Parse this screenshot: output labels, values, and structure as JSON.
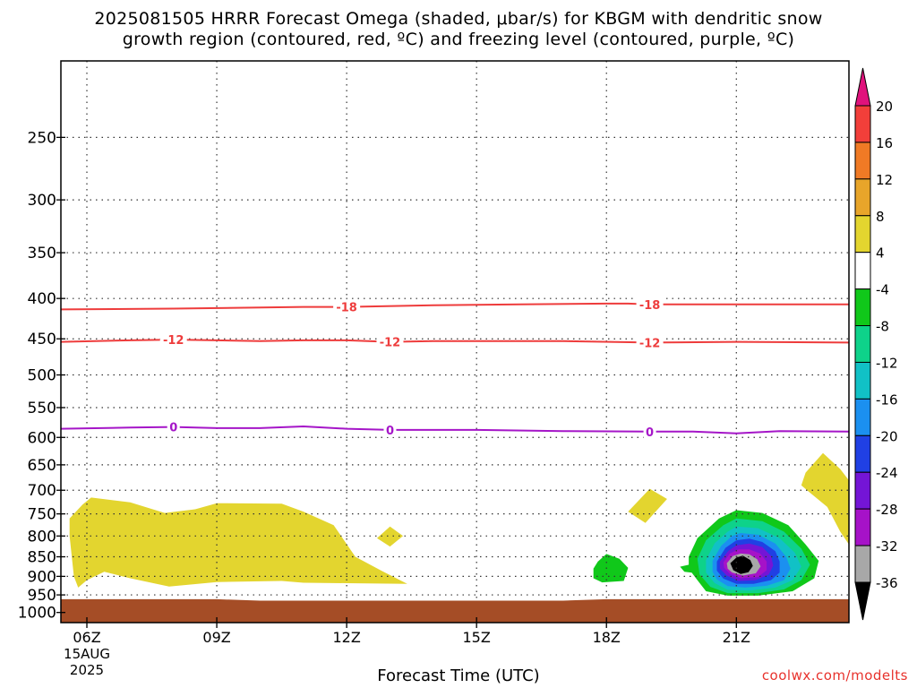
{
  "title_line1": "2025081505 HRRR Forecast Omega (shaded, μbar/s) for KBGM with dendritic snow",
  "title_line2": "growth region (contoured, red, ºC) and freezing level (contoured, purple, ºC)",
  "credit": "coolwx.com/modelts",
  "chart_data": {
    "type": "heatmap",
    "title": "2025081505 HRRR Forecast Omega (shaded, μbar/s) for KBGM with dendritic snow growth region (contoured, red, ºC) and freezing level (contoured, purple, ºC)",
    "xlabel": "Forecast Time (UTC)",
    "ylabel": "",
    "x_unit": "hour UTC, 15 Aug 2025",
    "xlim": [
      5.4,
      23.6
    ],
    "ylim_hPa": [
      1030,
      200
    ],
    "y_scale": "log-pressure",
    "grid": true,
    "x_ticks": [
      {
        "hour": 6,
        "label": "06Z",
        "sub": [
          "15AUG",
          "2025"
        ]
      },
      {
        "hour": 9,
        "label": "09Z"
      },
      {
        "hour": 12,
        "label": "12Z"
      },
      {
        "hour": 15,
        "label": "15Z"
      },
      {
        "hour": 18,
        "label": "18Z"
      },
      {
        "hour": 21,
        "label": "21Z"
      }
    ],
    "y_ticks": [
      250,
      300,
      350,
      400,
      450,
      500,
      550,
      600,
      650,
      700,
      750,
      800,
      850,
      900,
      950,
      1000
    ],
    "colorbar": {
      "labels": [
        "20",
        "16",
        "12",
        "8",
        "4",
        "-4",
        "-8",
        "-12",
        "-16",
        "-20",
        "-24",
        "-28",
        "-32",
        "-36"
      ],
      "bins": [
        {
          "from": 20,
          "to": 24,
          "color": "#e0127c"
        },
        {
          "from": 16,
          "to": 20,
          "color": "#f23f3a"
        },
        {
          "from": 12,
          "to": 16,
          "color": "#f07a25"
        },
        {
          "from": 8,
          "to": 12,
          "color": "#e8a52a"
        },
        {
          "from": 4,
          "to": 8,
          "color": "#e3d52f"
        },
        {
          "from": -4,
          "to": 4,
          "color": "#ffffff"
        },
        {
          "from": -8,
          "to": -4,
          "color": "#10c81a"
        },
        {
          "from": -12,
          "to": -8,
          "color": "#0ed28a"
        },
        {
          "from": -16,
          "to": -12,
          "color": "#11c1c6"
        },
        {
          "from": -20,
          "to": -16,
          "color": "#1b90f0"
        },
        {
          "from": -24,
          "to": -20,
          "color": "#2040e4"
        },
        {
          "from": -28,
          "to": -24,
          "color": "#7415d6"
        },
        {
          "from": -32,
          "to": -28,
          "color": "#a612c8"
        },
        {
          "from": -36,
          "to": -32,
          "color": "#a8a8a8"
        },
        {
          "from": -40,
          "to": -36,
          "color": "#000000"
        }
      ]
    },
    "ground_color": "#a54d26",
    "ground_top": [
      [
        5.4,
        962
      ],
      [
        9,
        962
      ],
      [
        10,
        966
      ],
      [
        17,
        966
      ],
      [
        18,
        962
      ],
      [
        23.6,
        962
      ]
    ],
    "contours": [
      {
        "value": -18,
        "label": "-18",
        "color": "#ee3c3c",
        "points": [
          [
            5.4,
            413
          ],
          [
            8,
            412
          ],
          [
            11,
            410
          ],
          [
            12,
            410
          ],
          [
            14,
            408
          ],
          [
            16,
            407
          ],
          [
            18,
            406
          ],
          [
            18.5,
            406
          ],
          [
            19,
            407
          ],
          [
            20,
            407
          ],
          [
            21,
            407
          ],
          [
            23.6,
            407
          ]
        ],
        "label_at": [
          12,
          19
        ]
      },
      {
        "value": -12,
        "label": "-12",
        "color": "#ee3c3c",
        "points": [
          [
            5.4,
            454
          ],
          [
            7,
            452
          ],
          [
            8,
            451
          ],
          [
            9,
            452
          ],
          [
            10,
            453
          ],
          [
            11,
            452
          ],
          [
            12,
            452
          ],
          [
            13,
            454
          ],
          [
            14,
            453
          ],
          [
            15,
            453
          ],
          [
            17,
            453
          ],
          [
            19,
            455
          ],
          [
            21,
            454
          ],
          [
            23.6,
            455
          ]
        ],
        "label_at": [
          8,
          13,
          19
        ]
      },
      {
        "value": 0,
        "label": "0",
        "color": "#a516c8",
        "points": [
          [
            5.4,
            585
          ],
          [
            7,
            583
          ],
          [
            8,
            582
          ],
          [
            9,
            584
          ],
          [
            10,
            584
          ],
          [
            11,
            581
          ],
          [
            12,
            585
          ],
          [
            13,
            587
          ],
          [
            15,
            587
          ],
          [
            17,
            589
          ],
          [
            19,
            590
          ],
          [
            20,
            590
          ],
          [
            21,
            593
          ],
          [
            22,
            589
          ],
          [
            23.6,
            590
          ]
        ],
        "label_at": [
          8,
          13,
          19
        ]
      }
    ],
    "shaded_regions": [
      {
        "value": "4 to 8",
        "color": "#e3d52f",
        "points": [
          [
            5.6,
            800
          ],
          [
            5.6,
            760
          ],
          [
            5.9,
            730
          ],
          [
            6.1,
            715
          ],
          [
            7,
            725
          ],
          [
            7.8,
            748
          ],
          [
            8.5,
            740
          ],
          [
            9,
            727
          ],
          [
            10.5,
            728
          ],
          [
            11,
            745
          ],
          [
            11.7,
            775
          ],
          [
            12.2,
            850
          ],
          [
            12.8,
            885
          ],
          [
            13.4,
            920
          ],
          [
            12,
            918
          ],
          [
            11,
            917
          ],
          [
            10.5,
            912
          ],
          [
            9,
            915
          ],
          [
            7.9,
            927
          ],
          [
            7,
            905
          ],
          [
            6.4,
            888
          ],
          [
            6,
            910
          ],
          [
            5.8,
            930
          ],
          [
            5.7,
            900
          ]
        ]
      },
      {
        "value": "4 to 8",
        "color": "#e3d52f",
        "points": [
          [
            12.7,
            805
          ],
          [
            13.0,
            778
          ],
          [
            13.3,
            800
          ],
          [
            13.0,
            825
          ]
        ]
      },
      {
        "value": "4 to 8",
        "color": "#e3d52f",
        "points": [
          [
            18.5,
            745
          ],
          [
            19.0,
            697
          ],
          [
            19.4,
            718
          ],
          [
            18.9,
            770
          ]
        ]
      },
      {
        "value": "4 to 8",
        "color": "#e3d52f",
        "points": [
          [
            22.6,
            665
          ],
          [
            23.0,
            628
          ],
          [
            23.4,
            658
          ],
          [
            23.6,
            680
          ],
          [
            23.6,
            820
          ],
          [
            23.4,
            790
          ],
          [
            23.1,
            735
          ],
          [
            22.7,
            705
          ],
          [
            22.5,
            690
          ]
        ]
      },
      {
        "value": "-8 to -4",
        "color": "#10c81a",
        "points": [
          [
            17.7,
            880
          ],
          [
            17.8,
            862
          ],
          [
            18.0,
            843
          ],
          [
            18.3,
            855
          ],
          [
            18.5,
            878
          ],
          [
            18.4,
            912
          ],
          [
            17.9,
            916
          ],
          [
            17.7,
            905
          ]
        ]
      },
      {
        "value": "-8 to -4",
        "color": "#10c81a",
        "points": [
          [
            19.7,
            875
          ],
          [
            20.1,
            865
          ],
          [
            20.3,
            875
          ],
          [
            20.1,
            892
          ],
          [
            19.8,
            888
          ]
        ]
      },
      {
        "value": "-8 to -4",
        "color": "#10c81a",
        "points": [
          [
            19.9,
            850
          ],
          [
            20.1,
            805
          ],
          [
            20.6,
            760
          ],
          [
            21.0,
            742
          ],
          [
            21.6,
            748
          ],
          [
            22.2,
            775
          ],
          [
            22.6,
            820
          ],
          [
            22.9,
            860
          ],
          [
            22.8,
            905
          ],
          [
            22.3,
            940
          ],
          [
            21.5,
            952
          ],
          [
            20.8,
            952
          ],
          [
            20.3,
            940
          ],
          [
            20.1,
            910
          ],
          [
            19.9,
            880
          ]
        ]
      },
      {
        "value": "-12 to -8",
        "color": "#0ed28a",
        "points": [
          [
            20.1,
            855
          ],
          [
            20.3,
            810
          ],
          [
            20.7,
            775
          ],
          [
            21.0,
            760
          ],
          [
            21.6,
            766
          ],
          [
            22.1,
            790
          ],
          [
            22.5,
            830
          ],
          [
            22.7,
            870
          ],
          [
            22.5,
            910
          ],
          [
            22.1,
            935
          ],
          [
            21.5,
            945
          ],
          [
            20.8,
            945
          ],
          [
            20.4,
            928
          ],
          [
            20.15,
            895
          ]
        ]
      },
      {
        "value": "-16 to -12",
        "color": "#11c1c6",
        "points": [
          [
            20.3,
            858
          ],
          [
            20.5,
            817
          ],
          [
            20.8,
            790
          ],
          [
            21.0,
            778
          ],
          [
            21.5,
            782
          ],
          [
            22.0,
            805
          ],
          [
            22.35,
            840
          ],
          [
            22.5,
            875
          ],
          [
            22.3,
            910
          ],
          [
            21.9,
            930
          ],
          [
            21.3,
            938
          ],
          [
            20.8,
            936
          ],
          [
            20.5,
            918
          ],
          [
            20.3,
            890
          ]
        ]
      },
      {
        "value": "-20 to -16",
        "color": "#1b90f0",
        "points": [
          [
            20.45,
            860
          ],
          [
            20.65,
            823
          ],
          [
            20.9,
            800
          ],
          [
            21.1,
            793
          ],
          [
            21.5,
            797
          ],
          [
            21.9,
            818
          ],
          [
            22.15,
            850
          ],
          [
            22.25,
            880
          ],
          [
            22.1,
            910
          ],
          [
            21.7,
            925
          ],
          [
            21.2,
            930
          ],
          [
            20.8,
            926
          ],
          [
            20.55,
            908
          ],
          [
            20.45,
            888
          ]
        ]
      },
      {
        "value": "-24 to -20",
        "color": "#2040e4",
        "points": [
          [
            20.55,
            862
          ],
          [
            20.75,
            828
          ],
          [
            21.0,
            810
          ],
          [
            21.3,
            806
          ],
          [
            21.6,
            814
          ],
          [
            21.9,
            836
          ],
          [
            22.0,
            862
          ],
          [
            22.0,
            890
          ],
          [
            21.8,
            910
          ],
          [
            21.4,
            920
          ],
          [
            21.0,
            920
          ],
          [
            20.7,
            906
          ],
          [
            20.55,
            885
          ]
        ]
      },
      {
        "value": "-28 to -24",
        "color": "#7415d6",
        "points": [
          [
            20.62,
            862
          ],
          [
            20.82,
            835
          ],
          [
            21.0,
            822
          ],
          [
            21.3,
            818
          ],
          [
            21.6,
            826
          ],
          [
            21.8,
            848
          ],
          [
            21.85,
            872
          ],
          [
            21.75,
            895
          ],
          [
            21.45,
            910
          ],
          [
            21.05,
            912
          ],
          [
            20.78,
            898
          ],
          [
            20.62,
            880
          ]
        ]
      },
      {
        "value": "-32 to -28",
        "color": "#a612c8",
        "points": [
          [
            20.7,
            864
          ],
          [
            20.85,
            842
          ],
          [
            21.05,
            832
          ],
          [
            21.3,
            832
          ],
          [
            21.55,
            842
          ],
          [
            21.7,
            862
          ],
          [
            21.7,
            884
          ],
          [
            21.5,
            902
          ],
          [
            21.1,
            905
          ],
          [
            20.85,
            893
          ],
          [
            20.72,
            878
          ]
        ]
      },
      {
        "value": "-36 to -32",
        "color": "#a8a8a8",
        "points": [
          [
            20.78,
            866
          ],
          [
            20.92,
            848
          ],
          [
            21.1,
            842
          ],
          [
            21.3,
            844
          ],
          [
            21.48,
            856
          ],
          [
            21.56,
            874
          ],
          [
            21.45,
            892
          ],
          [
            21.15,
            898
          ],
          [
            20.9,
            890
          ],
          [
            20.8,
            880
          ]
        ]
      },
      {
        "value": "< -36",
        "color": "#000000",
        "points": [
          [
            20.86,
            866
          ],
          [
            21.0,
            852
          ],
          [
            21.15,
            847
          ],
          [
            21.32,
            858
          ],
          [
            21.38,
            873
          ],
          [
            21.28,
            889
          ],
          [
            21.1,
            894
          ],
          [
            20.93,
            884
          ]
        ]
      }
    ]
  }
}
